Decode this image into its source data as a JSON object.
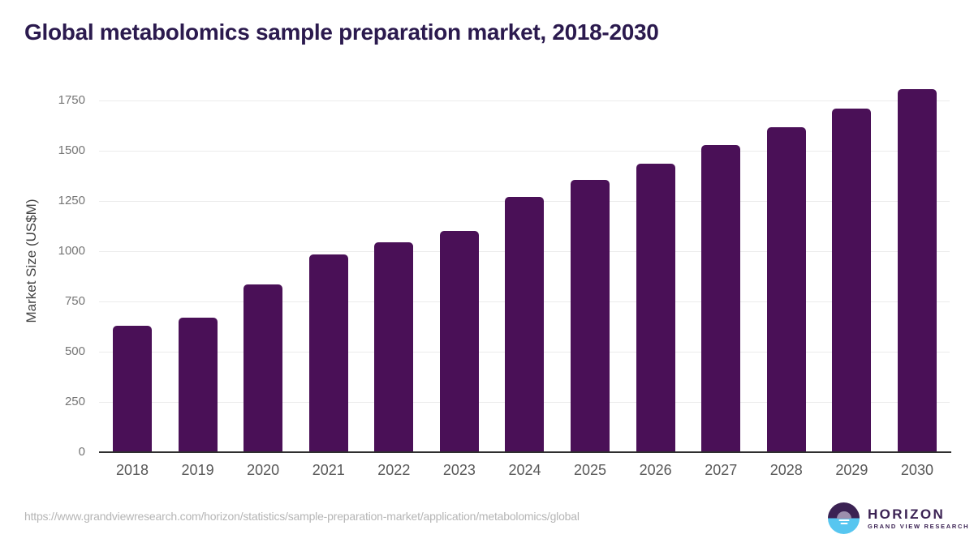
{
  "title": "Global metabolomics sample preparation market, 2018-2030",
  "chart_data": {
    "type": "bar",
    "title": "Global metabolomics sample preparation market, 2018-2030",
    "categories": [
      "2018",
      "2019",
      "2020",
      "2021",
      "2022",
      "2023",
      "2024",
      "2025",
      "2026",
      "2027",
      "2028",
      "2029",
      "2030"
    ],
    "values": [
      630,
      668,
      834,
      985,
      1045,
      1102,
      1270,
      1356,
      1437,
      1528,
      1618,
      1710,
      1805
    ],
    "xlabel": "",
    "ylabel": "Market Size (US$M)",
    "ylim": [
      0,
      1850
    ],
    "yticks": [
      0,
      250,
      500,
      750,
      1000,
      1250,
      1500,
      1750
    ],
    "grid": true,
    "legend": false,
    "bar_color": "#4a1057",
    "gridline_color": "#ebebeb",
    "axis_line_color": "#2f2f2f"
  },
  "footer": {
    "source_url": "https://www.grandviewresearch.com/horizon/statistics/sample-preparation-market/application/metabolomics/global",
    "logo": {
      "brand": "HORIZON",
      "sub_brand": "GRAND VIEW RESEARCH",
      "purple": "#3b2253",
      "blue": "#57c6f0"
    }
  },
  "colors": {
    "title": "#2b1a4e",
    "tick_text": "#757575",
    "x_tick_text": "#585858"
  }
}
